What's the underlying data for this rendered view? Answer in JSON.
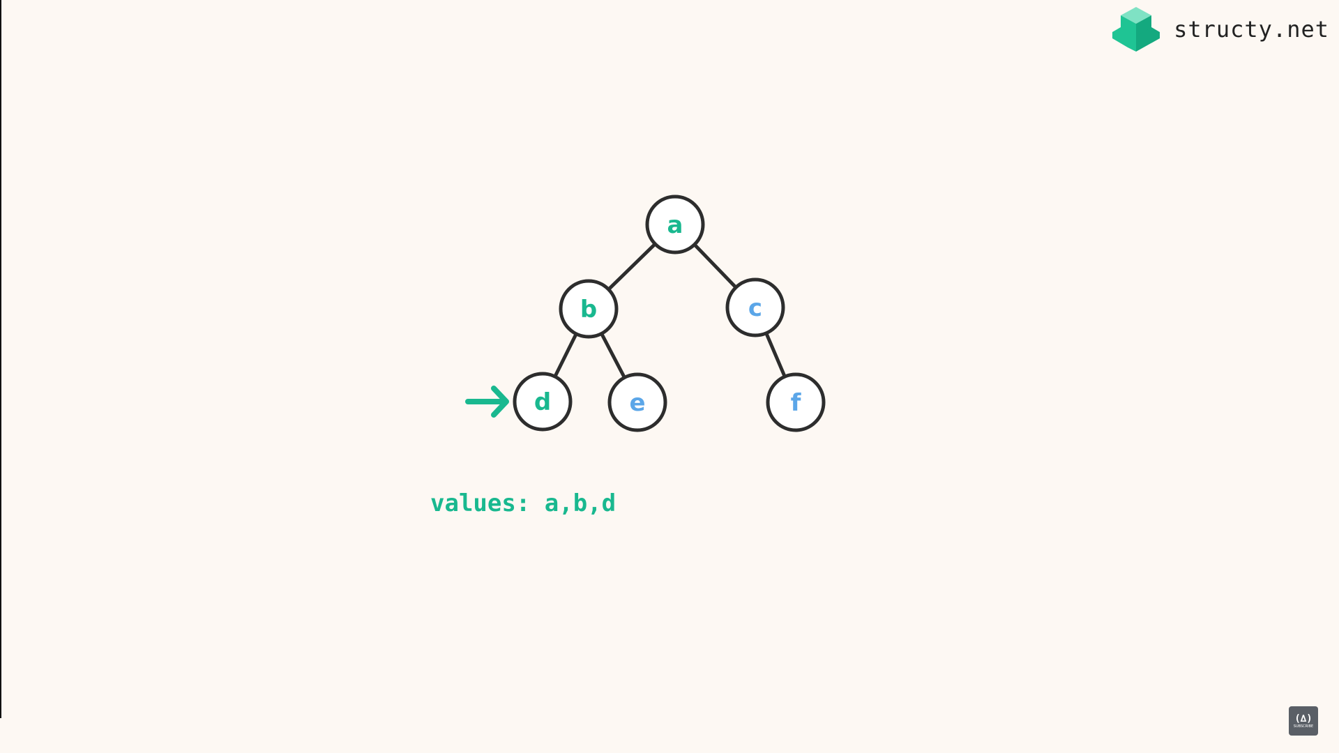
{
  "brand": {
    "text": "structy.net",
    "logo_colors": [
      "#1fc494",
      "#14a97f",
      "#7fe2c4"
    ]
  },
  "colors": {
    "visited": "#19b88f",
    "unvisited": "#5ba6e8",
    "edge": "#2d2d2d",
    "node_fill": "#ffffff",
    "background": "#fdf8f3"
  },
  "tree": {
    "nodes": [
      {
        "id": "a",
        "label": "a",
        "state": "visited"
      },
      {
        "id": "b",
        "label": "b",
        "state": "visited"
      },
      {
        "id": "c",
        "label": "c",
        "state": "unvisited"
      },
      {
        "id": "d",
        "label": "d",
        "state": "visited"
      },
      {
        "id": "e",
        "label": "e",
        "state": "unvisited"
      },
      {
        "id": "f",
        "label": "f",
        "state": "unvisited"
      }
    ],
    "edges": [
      [
        "a",
        "b"
      ],
      [
        "a",
        "c"
      ],
      [
        "b",
        "d"
      ],
      [
        "b",
        "e"
      ],
      [
        "c",
        "f"
      ]
    ],
    "pointer_target": "d"
  },
  "values": {
    "text": "values: a,b,d"
  },
  "corner_badge": {
    "glyph": "(∆)",
    "label": "SUBSCRIBE"
  }
}
